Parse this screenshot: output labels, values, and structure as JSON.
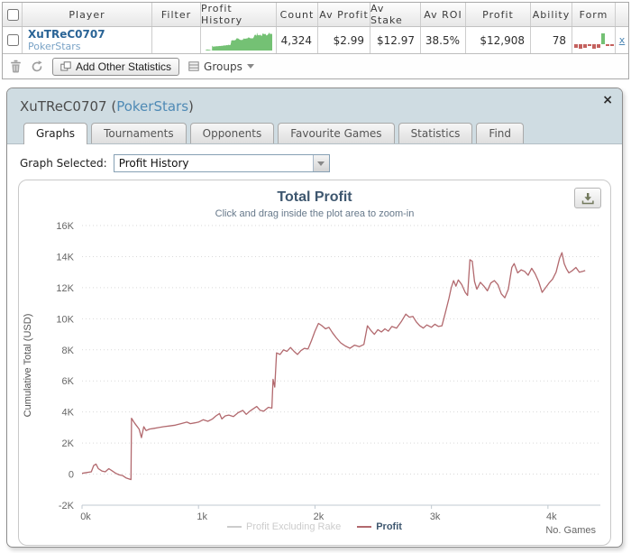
{
  "table": {
    "columns": [
      "Player",
      "Filter",
      "Profit History",
      "Count",
      "Av Profit",
      "Av Stake",
      "Av ROI",
      "Profit",
      "Ability",
      "Form"
    ],
    "row": {
      "player_name": "XuTReC0707",
      "player_site": "PokerStars",
      "filter": "",
      "count": "4,324",
      "av_profit": "$2.99",
      "av_stake": "$12.97",
      "av_roi": "38.5%",
      "profit": "$12,908",
      "ability": "78",
      "remove_label": "x",
      "form_bars": [
        -4,
        -5,
        -4,
        -2,
        -5,
        -4,
        12,
        -2,
        -2
      ]
    },
    "toolbar": {
      "add_button": "Add Other Statistics",
      "groups_button": "Groups"
    }
  },
  "panel": {
    "title_name": "XuTReC0707",
    "title_open": "(",
    "title_site": "PokerStars",
    "title_close": ")",
    "close_button": "×",
    "tabs": [
      "Graphs",
      "Tournaments",
      "Opponents",
      "Favourite Games",
      "Statistics",
      "Find"
    ],
    "active_tab": "Graphs",
    "graph_selected_label": "Graph Selected:",
    "graph_selected_value": "Profit History"
  },
  "colors": {
    "spark_green": "#74c174",
    "form_red": "#c4615e",
    "form_green": "#74c174",
    "profit_line": "#b2696e",
    "muted_legend": "#cccccc",
    "legend_text": "#3e576f"
  },
  "chart_data": {
    "type": "line",
    "title": "Total Profit",
    "subtitle": "Click and drag inside the plot area to zoom-in",
    "ylabel": "Cumulative Total (USD)",
    "xlabel": "No. Games",
    "xlim": [
      0,
      4.45
    ],
    "ylim": [
      -2,
      16
    ],
    "xticks": [
      0,
      1,
      2,
      3,
      4
    ],
    "xtick_labels": [
      "0k",
      "1k",
      "2k",
      "3k",
      "4k"
    ],
    "yticks": [
      16,
      14,
      12,
      10,
      8,
      6,
      4,
      2,
      0,
      -2
    ],
    "ytick_labels": [
      "16K",
      "14K",
      "12K",
      "10K",
      "8K",
      "6K",
      "4K",
      "2K",
      "0",
      "-2K"
    ],
    "grid": "dotted",
    "legend_position": "bottom",
    "legend": [
      {
        "label": "Profit Excluding Rake",
        "color": "#cccccc",
        "text_color": "#cccccc",
        "visible": false
      },
      {
        "label": "Profit",
        "color": "#b2696e",
        "text_color": "#3e576f",
        "visible": true
      }
    ],
    "series": [
      {
        "name": "Profit",
        "color": "#b2696e",
        "units": "K USD vs k games",
        "points": [
          [
            0,
            0.05
          ],
          [
            0.04,
            0.1
          ],
          [
            0.08,
            0.15
          ],
          [
            0.1,
            0.55
          ],
          [
            0.12,
            0.65
          ],
          [
            0.14,
            0.35
          ],
          [
            0.17,
            0.2
          ],
          [
            0.2,
            0.15
          ],
          [
            0.23,
            0.35
          ],
          [
            0.26,
            0.2
          ],
          [
            0.29,
            0.05
          ],
          [
            0.32,
            -0.05
          ],
          [
            0.35,
            -0.1
          ],
          [
            0.38,
            -0.25
          ],
          [
            0.42,
            -0.35
          ],
          [
            0.425,
            3.6
          ],
          [
            0.45,
            3.3
          ],
          [
            0.47,
            3.1
          ],
          [
            0.49,
            2.9
          ],
          [
            0.51,
            2.35
          ],
          [
            0.53,
            3.05
          ],
          [
            0.55,
            2.8
          ],
          [
            0.58,
            2.9
          ],
          [
            0.62,
            2.95
          ],
          [
            0.66,
            3.0
          ],
          [
            0.7,
            3.05
          ],
          [
            0.75,
            3.1
          ],
          [
            0.8,
            3.15
          ],
          [
            0.85,
            3.25
          ],
          [
            0.9,
            3.35
          ],
          [
            0.93,
            3.25
          ],
          [
            0.97,
            3.3
          ],
          [
            1.0,
            3.35
          ],
          [
            1.04,
            3.5
          ],
          [
            1.08,
            3.4
          ],
          [
            1.12,
            3.55
          ],
          [
            1.15,
            3.75
          ],
          [
            1.18,
            3.9
          ],
          [
            1.2,
            3.55
          ],
          [
            1.23,
            3.75
          ],
          [
            1.26,
            3.8
          ],
          [
            1.3,
            3.7
          ],
          [
            1.34,
            3.95
          ],
          [
            1.38,
            4.1
          ],
          [
            1.41,
            3.85
          ],
          [
            1.44,
            4.05
          ],
          [
            1.47,
            4.2
          ],
          [
            1.5,
            4.35
          ],
          [
            1.53,
            4.1
          ],
          [
            1.56,
            4.05
          ],
          [
            1.6,
            4.3
          ],
          [
            1.63,
            4.25
          ],
          [
            1.64,
            6.1
          ],
          [
            1.655,
            5.6
          ],
          [
            1.67,
            7.8
          ],
          [
            1.7,
            7.7
          ],
          [
            1.73,
            8.0
          ],
          [
            1.76,
            7.9
          ],
          [
            1.79,
            8.15
          ],
          [
            1.82,
            7.9
          ],
          [
            1.85,
            7.7
          ],
          [
            1.88,
            7.95
          ],
          [
            1.91,
            8.1
          ],
          [
            1.94,
            8.05
          ],
          [
            1.97,
            8.6
          ],
          [
            2.0,
            9.2
          ],
          [
            2.03,
            9.7
          ],
          [
            2.06,
            9.55
          ],
          [
            2.09,
            9.35
          ],
          [
            2.12,
            9.45
          ],
          [
            2.15,
            9.1
          ],
          [
            2.18,
            8.8
          ],
          [
            2.22,
            8.45
          ],
          [
            2.26,
            8.25
          ],
          [
            2.3,
            8.1
          ],
          [
            2.34,
            8.3
          ],
          [
            2.38,
            8.2
          ],
          [
            2.42,
            8.35
          ],
          [
            2.45,
            9.55
          ],
          [
            2.48,
            9.25
          ],
          [
            2.51,
            9.0
          ],
          [
            2.54,
            9.3
          ],
          [
            2.57,
            9.15
          ],
          [
            2.6,
            9.35
          ],
          [
            2.63,
            9.2
          ],
          [
            2.66,
            9.5
          ],
          [
            2.7,
            9.4
          ],
          [
            2.74,
            9.8
          ],
          [
            2.78,
            10.3
          ],
          [
            2.81,
            10.1
          ],
          [
            2.84,
            10.15
          ],
          [
            2.87,
            9.8
          ],
          [
            2.9,
            9.55
          ],
          [
            2.93,
            9.4
          ],
          [
            2.96,
            9.6
          ],
          [
            3.0,
            9.45
          ],
          [
            3.03,
            9.65
          ],
          [
            3.06,
            9.5
          ],
          [
            3.09,
            9.55
          ],
          [
            3.12,
            10.4
          ],
          [
            3.15,
            11.3
          ],
          [
            3.17,
            12.0
          ],
          [
            3.19,
            12.45
          ],
          [
            3.21,
            12.1
          ],
          [
            3.23,
            12.5
          ],
          [
            3.26,
            12.2
          ],
          [
            3.29,
            11.7
          ],
          [
            3.31,
            11.5
          ],
          [
            3.33,
            13.8
          ],
          [
            3.35,
            13.7
          ],
          [
            3.37,
            12.4
          ],
          [
            3.39,
            11.9
          ],
          [
            3.42,
            12.35
          ],
          [
            3.45,
            12.1
          ],
          [
            3.48,
            11.8
          ],
          [
            3.51,
            12.3
          ],
          [
            3.54,
            12.45
          ],
          [
            3.57,
            12.2
          ],
          [
            3.6,
            11.6
          ],
          [
            3.63,
            11.35
          ],
          [
            3.66,
            11.9
          ],
          [
            3.69,
            13.3
          ],
          [
            3.71,
            13.55
          ],
          [
            3.74,
            12.95
          ],
          [
            3.77,
            13.15
          ],
          [
            3.8,
            13.05
          ],
          [
            3.83,
            12.8
          ],
          [
            3.86,
            13.25
          ],
          [
            3.89,
            12.9
          ],
          [
            3.92,
            12.4
          ],
          [
            3.95,
            11.7
          ],
          [
            3.98,
            12.0
          ],
          [
            4.01,
            12.3
          ],
          [
            4.04,
            12.55
          ],
          [
            4.07,
            13.0
          ],
          [
            4.1,
            13.9
          ],
          [
            4.12,
            14.25
          ],
          [
            4.14,
            13.55
          ],
          [
            4.16,
            13.2
          ],
          [
            4.18,
            12.95
          ],
          [
            4.21,
            13.1
          ],
          [
            4.24,
            13.3
          ],
          [
            4.27,
            13.0
          ],
          [
            4.3,
            13.05
          ],
          [
            4.32,
            13.1
          ]
        ]
      }
    ]
  }
}
